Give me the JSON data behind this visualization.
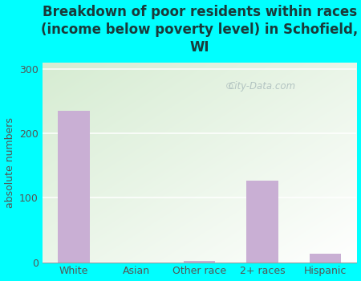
{
  "title": "Breakdown of poor residents within races\n(income below poverty level) in Schofield,\nWI",
  "categories": [
    "White",
    "Asian",
    "Other race",
    "2+ races",
    "Hispanic"
  ],
  "values": [
    235,
    0,
    2,
    127,
    13
  ],
  "bar_color": "#c9afd4",
  "ylabel": "absolute numbers",
  "ylim": [
    0,
    310
  ],
  "yticks": [
    0,
    100,
    200,
    300
  ],
  "bg_outer": "#00ffff",
  "bg_plot_top_left": "#d6ecd2",
  "bg_plot_bottom_right": "#f5faf5",
  "bg_plot_right": "#e8f4f0",
  "title_color": "#1a3a3a",
  "axis_color": "#555555",
  "tick_color": "#555555",
  "watermark": "City-Data.com",
  "watermark_color": "#aabcbc",
  "title_fontsize": 12,
  "bar_width": 0.5
}
